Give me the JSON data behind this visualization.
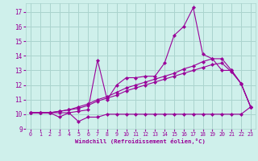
{
  "xlabel": "Windchill (Refroidissement éolien,°C)",
  "background_color": "#cff0eb",
  "grid_color": "#aad4ce",
  "line_color": "#990099",
  "xlim": [
    -0.5,
    23.5
  ],
  "ylim": [
    9,
    17.6
  ],
  "yticks": [
    9,
    10,
    11,
    12,
    13,
    14,
    15,
    16,
    17
  ],
  "xticks": [
    0,
    1,
    2,
    3,
    4,
    5,
    6,
    7,
    8,
    9,
    10,
    11,
    12,
    13,
    14,
    15,
    16,
    17,
    18,
    19,
    20,
    21,
    22,
    23
  ],
  "lines": [
    {
      "x": [
        0,
        1,
        2,
        3,
        4,
        5,
        6,
        7,
        8,
        9,
        10,
        11,
        12,
        13,
        14,
        15,
        16,
        17,
        18,
        19,
        20,
        21,
        22,
        23
      ],
      "y": [
        10.1,
        10.1,
        10.1,
        9.8,
        10.1,
        9.5,
        9.8,
        9.8,
        10.0,
        10.0,
        10.0,
        10.0,
        10.0,
        10.0,
        10.0,
        10.0,
        10.0,
        10.0,
        10.0,
        10.0,
        10.0,
        10.0,
        10.0,
        10.5
      ]
    },
    {
      "x": [
        0,
        1,
        2,
        3,
        4,
        5,
        6,
        7,
        8,
        9,
        10,
        11,
        12,
        13,
        14,
        15,
        16,
        17,
        18,
        19,
        20,
        21,
        22,
        23
      ],
      "y": [
        10.1,
        10.1,
        10.1,
        10.1,
        10.1,
        10.2,
        10.3,
        13.7,
        11.0,
        12.0,
        12.5,
        12.5,
        12.6,
        12.6,
        13.5,
        15.4,
        16.0,
        17.3,
        14.1,
        13.8,
        13.0,
        13.0,
        12.1,
        10.5
      ]
    },
    {
      "x": [
        0,
        1,
        2,
        3,
        4,
        5,
        6,
        7,
        8,
        9,
        10,
        11,
        12,
        13,
        14,
        15,
        16,
        17,
        18,
        19,
        20,
        21,
        22,
        23
      ],
      "y": [
        10.1,
        10.1,
        10.1,
        10.2,
        10.3,
        10.5,
        10.7,
        11.0,
        11.2,
        11.5,
        11.8,
        12.0,
        12.2,
        12.4,
        12.6,
        12.8,
        13.1,
        13.3,
        13.6,
        13.8,
        13.8,
        13.0,
        12.1,
        10.5
      ]
    },
    {
      "x": [
        0,
        1,
        2,
        3,
        4,
        5,
        6,
        7,
        8,
        9,
        10,
        11,
        12,
        13,
        14,
        15,
        16,
        17,
        18,
        19,
        20,
        21,
        22,
        23
      ],
      "y": [
        10.1,
        10.1,
        10.1,
        10.2,
        10.3,
        10.4,
        10.6,
        10.9,
        11.1,
        11.3,
        11.6,
        11.8,
        12.0,
        12.2,
        12.4,
        12.6,
        12.8,
        13.0,
        13.2,
        13.4,
        13.5,
        12.9,
        12.1,
        10.5
      ]
    }
  ]
}
